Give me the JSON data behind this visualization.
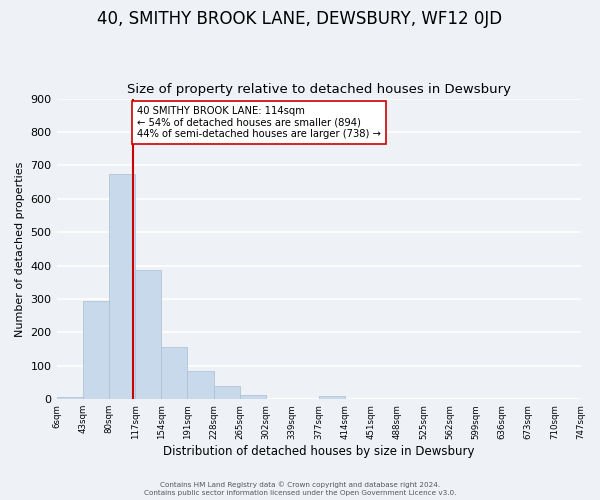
{
  "title": "40, SMITHY BROOK LANE, DEWSBURY, WF12 0JD",
  "subtitle": "Size of property relative to detached houses in Dewsbury",
  "xlabel": "Distribution of detached houses by size in Dewsbury",
  "ylabel": "Number of detached properties",
  "bar_edges": [
    6,
    43,
    80,
    117,
    154,
    191,
    228,
    265,
    302,
    339,
    377,
    414,
    451,
    488,
    525,
    562,
    599,
    636,
    673,
    710,
    747
  ],
  "bar_heights": [
    8,
    295,
    675,
    387,
    155,
    85,
    40,
    14,
    0,
    0,
    10,
    0,
    0,
    0,
    0,
    0,
    0,
    0,
    0,
    0
  ],
  "bar_color": "#c9d9ec",
  "bar_edgecolor": "#a8bfd4",
  "vline_x": 114,
  "vline_color": "#cc0000",
  "ylim": [
    0,
    900
  ],
  "yticks": [
    0,
    100,
    200,
    300,
    400,
    500,
    600,
    700,
    800,
    900
  ],
  "annotation_text": "40 SMITHY BROOK LANE: 114sqm\n← 54% of detached houses are smaller (894)\n44% of semi-detached houses are larger (738) →",
  "annotation_box_color": "#ffffff",
  "annotation_box_edgecolor": "#cc0000",
  "footer_line1": "Contains HM Land Registry data © Crown copyright and database right 2024.",
  "footer_line2": "Contains public sector information licensed under the Open Government Licence v3.0.",
  "background_color": "#eef2f7",
  "grid_color": "#ffffff",
  "title_fontsize": 12,
  "subtitle_fontsize": 9.5,
  "tick_labels": [
    "6sqm",
    "43sqm",
    "80sqm",
    "117sqm",
    "154sqm",
    "191sqm",
    "228sqm",
    "265sqm",
    "302sqm",
    "339sqm",
    "377sqm",
    "414sqm",
    "451sqm",
    "488sqm",
    "525sqm",
    "562sqm",
    "599sqm",
    "636sqm",
    "673sqm",
    "710sqm",
    "747sqm"
  ]
}
